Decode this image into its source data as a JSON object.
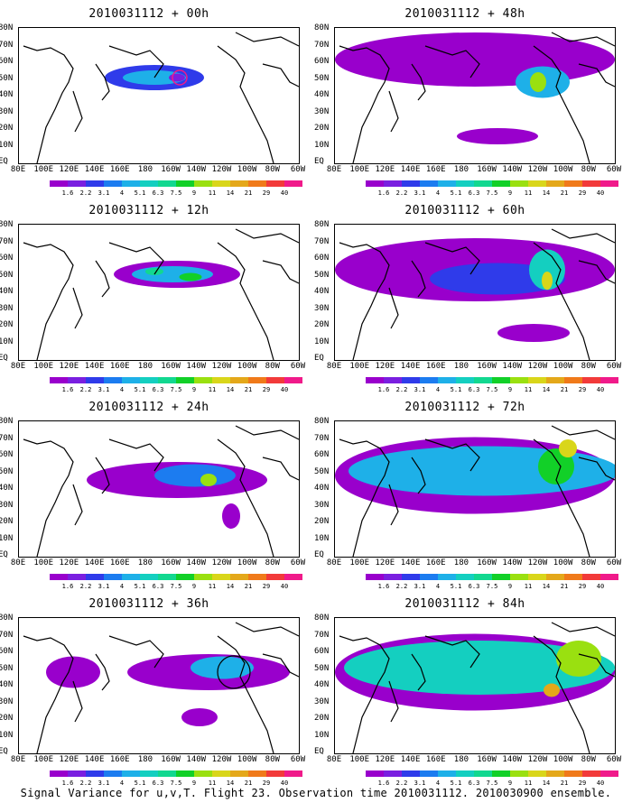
{
  "panels": [
    {
      "title": "2010031112 + 00h"
    },
    {
      "title": "2010031112 + 48h"
    },
    {
      "title": "2010031112 + 12h"
    },
    {
      "title": "2010031112 + 60h"
    },
    {
      "title": "2010031112 + 24h"
    },
    {
      "title": "2010031112 + 72h"
    },
    {
      "title": "2010031112 + 36h"
    },
    {
      "title": "2010031112 + 84h"
    }
  ],
  "lat_labels": [
    "80N",
    "70N",
    "60N",
    "50N",
    "40N",
    "30N",
    "20N",
    "10N",
    "EQ"
  ],
  "lon_labels": [
    "80E",
    "100E",
    "120E",
    "140E",
    "160E",
    "180",
    "160W",
    "140W",
    "120W",
    "100W",
    "80W",
    "60W"
  ],
  "colorbar": {
    "labels": [
      "1.6",
      "2.2",
      "3.1",
      "4",
      "5.1",
      "6.3",
      "7.5",
      "9",
      "11",
      "14",
      "21",
      "29",
      "40"
    ],
    "colors": [
      "#9900cc",
      "#7a1fe0",
      "#2f3bea",
      "#1c7cf0",
      "#1eb0e8",
      "#14cfc0",
      "#12d890",
      "#12d028",
      "#9ae010",
      "#d9d61a",
      "#e4a81a",
      "#f07a1a",
      "#f23a3a",
      "#f01a8a"
    ]
  },
  "caption": "Signal Variance for u,v,T. Flight 23. Observation time 2010031112. 2010030900 ensemble."
}
